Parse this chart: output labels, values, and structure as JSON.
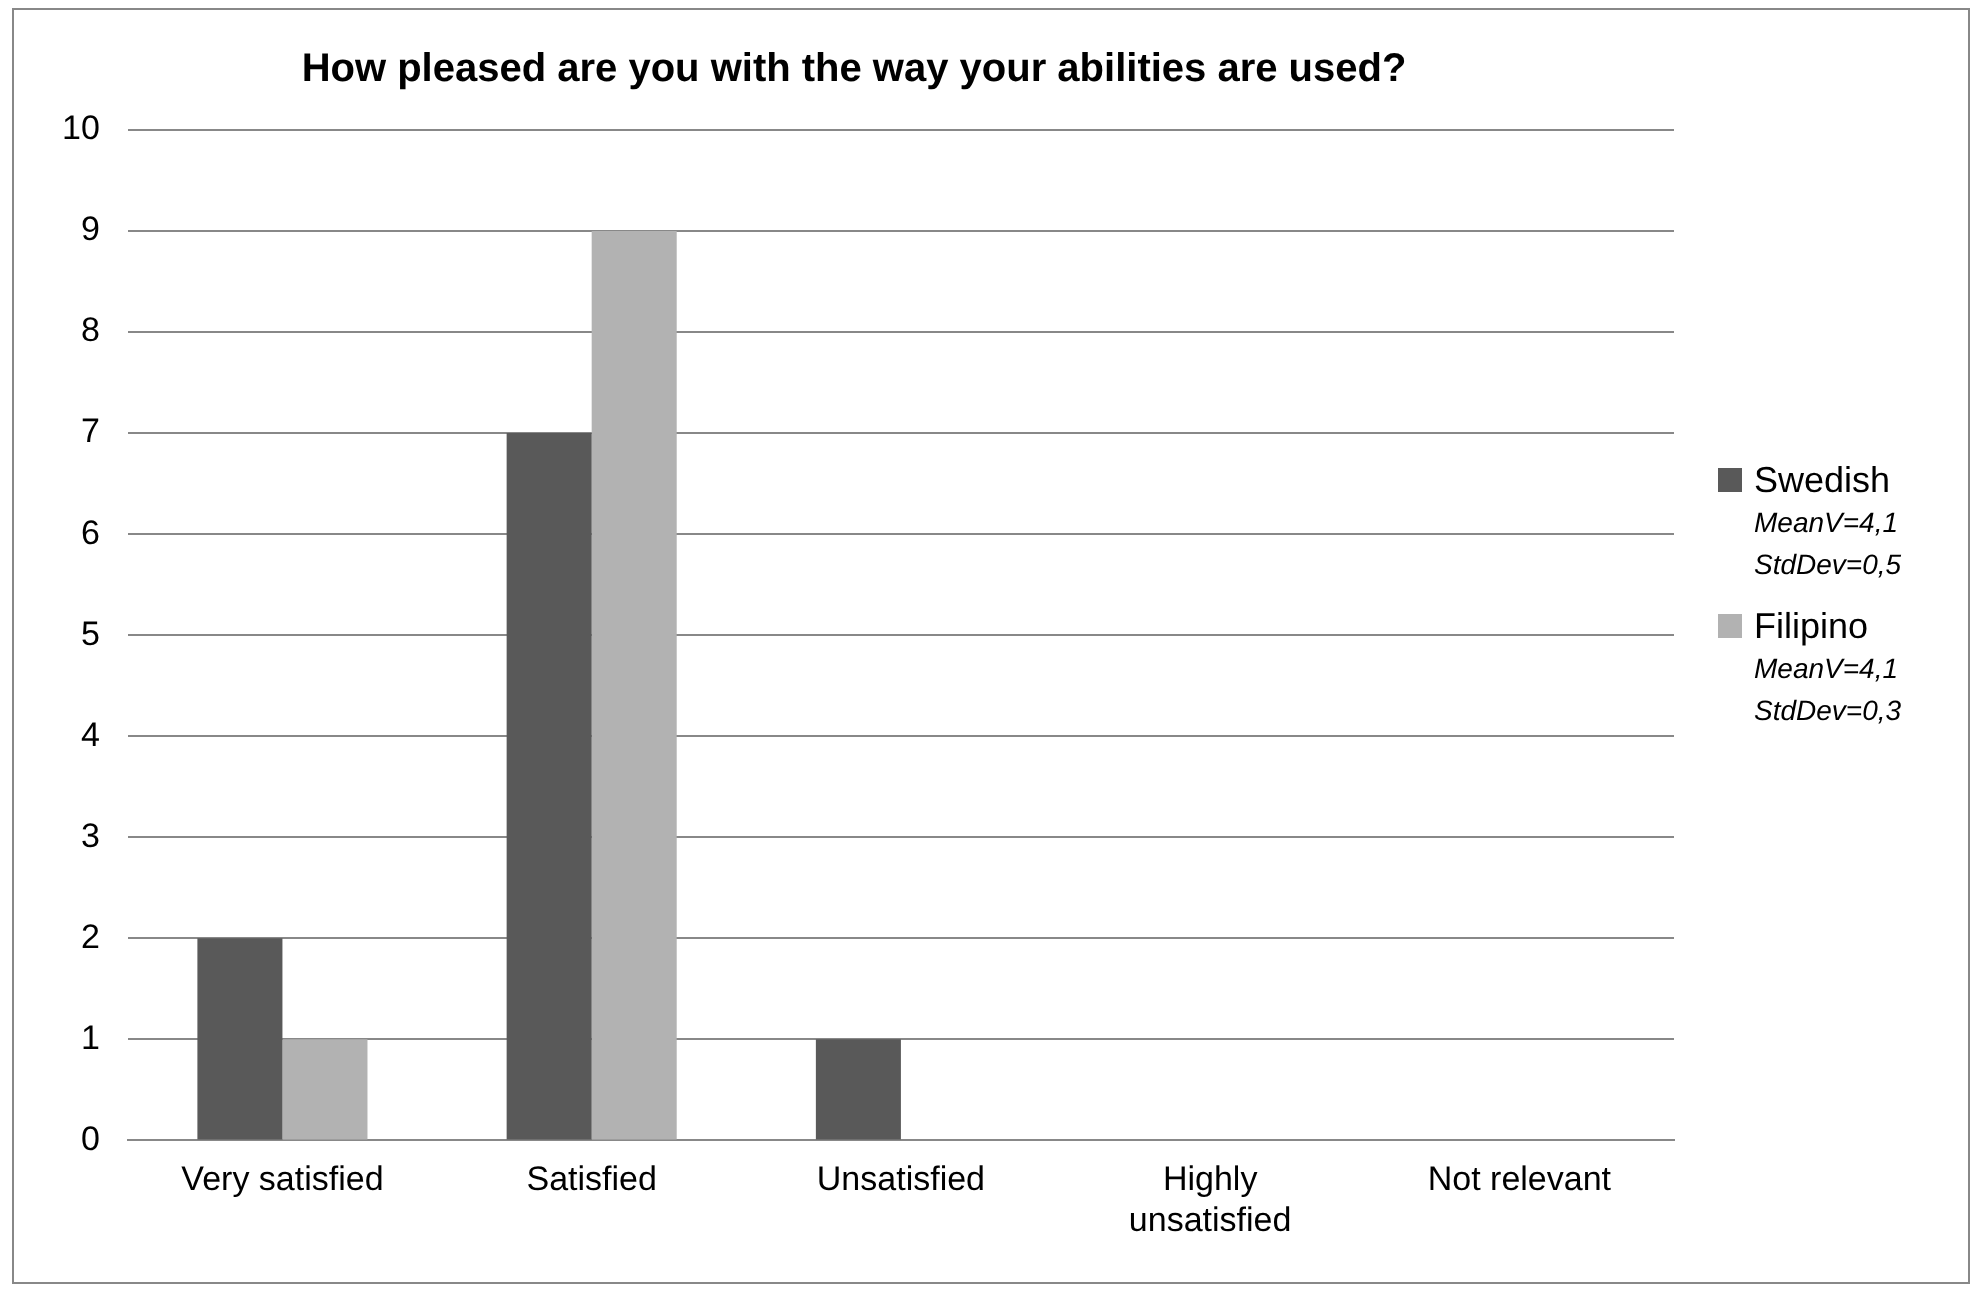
{
  "chart_data": {
    "type": "bar",
    "title": "How pleased are you with the way your abilities are used?",
    "categories": [
      "Very satisfied",
      "Satisfied",
      "Unsatisfied",
      "Highly unsatisfied",
      "Not relevant"
    ],
    "series": [
      {
        "name": "Swedish",
        "color": "#595959",
        "values": [
          2,
          7,
          1,
          0,
          0
        ]
      },
      {
        "name": "Filipino",
        "color": "#b2b2b2",
        "values": [
          1,
          9,
          0,
          0,
          0
        ]
      }
    ],
    "annotations": [
      "MeanV=4,1",
      "StdDev=0,5",
      "MeanV=4,1",
      "StdDev=0,3"
    ],
    "ylim": [
      0,
      10
    ],
    "yticks": [
      0,
      1,
      2,
      3,
      4,
      5,
      6,
      7,
      8,
      9,
      10
    ],
    "grid": "y",
    "legend": "right"
  }
}
